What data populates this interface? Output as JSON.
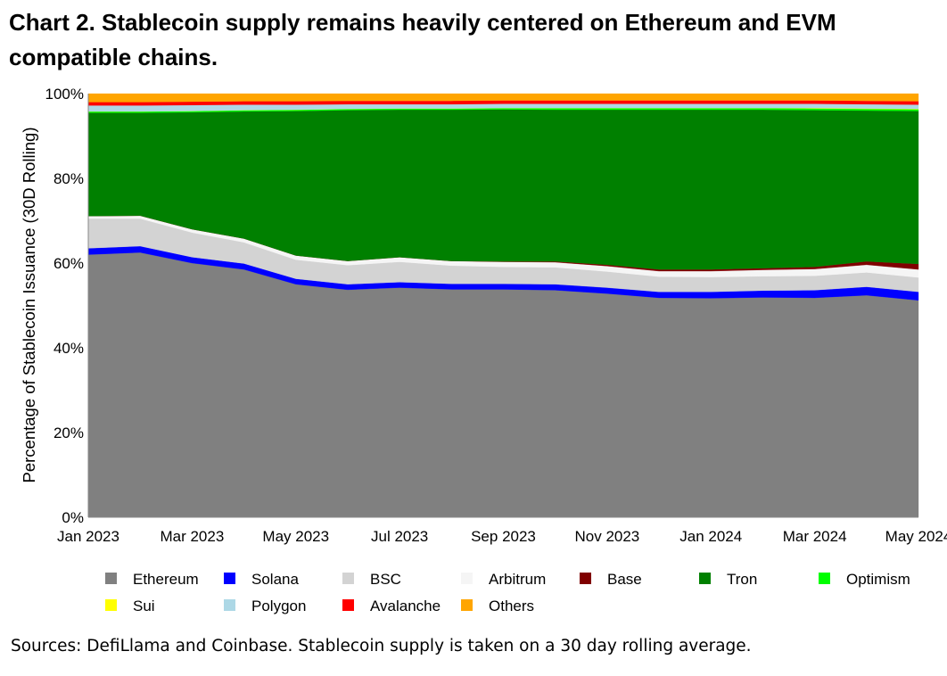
{
  "chart_data": {
    "type": "area",
    "stacked": true,
    "title": "Chart 2. Stablecoin supply remains heavily centered on Ethereum and EVM compatible chains.",
    "ylabel": "Percentage of Stablecoin Issuance (30D Rolling)",
    "xlabel": "",
    "ylim": [
      0,
      100
    ],
    "yticks": [
      "0%",
      "20%",
      "40%",
      "60%",
      "80%",
      "100%"
    ],
    "xticks": [
      "Jan 2023",
      "Mar 2023",
      "May 2023",
      "Jul 2023",
      "Sep 2023",
      "Nov 2023",
      "Jan 2024",
      "Mar 2024",
      "May 2024"
    ],
    "x": [
      "2023-01",
      "2023-02",
      "2023-03",
      "2023-04",
      "2023-05",
      "2023-06",
      "2023-07",
      "2023-08",
      "2023-09",
      "2023-10",
      "2023-11",
      "2023-12",
      "2024-01",
      "2024-02",
      "2024-03",
      "2024-04",
      "2024-05"
    ],
    "grid": false,
    "legend_position": "bottom",
    "series": [
      {
        "name": "Ethereum",
        "color": "#808080",
        "values": [
          62,
          62.5,
          60,
          58.5,
          55,
          53.7,
          54.2,
          53.8,
          53.8,
          53.6,
          52.8,
          51.8,
          51.7,
          51.9,
          51.8,
          52.4,
          51.2
        ]
      },
      {
        "name": "Solana",
        "color": "#0000ff",
        "values": [
          1.5,
          1.5,
          1.4,
          1.4,
          1.3,
          1.3,
          1.3,
          1.3,
          1.3,
          1.4,
          1.4,
          1.4,
          1.5,
          1.6,
          1.8,
          2.0,
          2.0
        ]
      },
      {
        "name": "BSC",
        "color": "#d3d3d3",
        "values": [
          7,
          6.5,
          5.8,
          5,
          4.5,
          4.5,
          4.8,
          4.3,
          4,
          4,
          3.8,
          3.6,
          3.5,
          3.4,
          3.4,
          3.4,
          3.4
        ]
      },
      {
        "name": "Arbitrum",
        "color": "#f5f5f5",
        "values": [
          0.6,
          0.7,
          0.8,
          0.9,
          1.0,
          1.0,
          1.1,
          1.1,
          1.2,
          1.2,
          1.3,
          1.3,
          1.4,
          1.5,
          1.6,
          1.8,
          1.9
        ]
      },
      {
        "name": "Base",
        "color": "#800000",
        "values": [
          0,
          0,
          0,
          0,
          0,
          0,
          0,
          0,
          0.1,
          0.2,
          0.3,
          0.4,
          0.4,
          0.4,
          0.5,
          0.8,
          1.3
        ]
      },
      {
        "name": "Tron",
        "color": "#008000",
        "values": [
          24.4,
          24.3,
          27.6,
          30.0,
          34.1,
          35.6,
          34.8,
          35.7,
          35.9,
          35.8,
          36.6,
          37.7,
          37.7,
          37.4,
          37.0,
          35.6,
          36.1
        ]
      },
      {
        "name": "Optimism",
        "color": "#00ff00",
        "values": [
          0.3,
          0.3,
          0.3,
          0.3,
          0.3,
          0.3,
          0.3,
          0.3,
          0.3,
          0.4,
          0.4,
          0.4,
          0.4,
          0.4,
          0.4,
          0.4,
          0.4
        ]
      },
      {
        "name": "Sui",
        "color": "#ffff00",
        "values": [
          0,
          0,
          0,
          0,
          0,
          0,
          0,
          0,
          0,
          0,
          0,
          0,
          0,
          0,
          0.1,
          0.1,
          0.1
        ]
      },
      {
        "name": "Polygon",
        "color": "#add8e6",
        "values": [
          1.4,
          1.4,
          1.4,
          1.3,
          1.2,
          1.1,
          1.0,
          1.0,
          1.0,
          1.0,
          1.0,
          1.0,
          1.0,
          1.0,
          1.0,
          1.0,
          1.0
        ]
      },
      {
        "name": "Avalanche",
        "color": "#ff0000",
        "values": [
          0.8,
          0.8,
          0.8,
          0.8,
          0.8,
          0.8,
          0.8,
          0.8,
          0.8,
          0.8,
          0.8,
          0.8,
          0.8,
          0.8,
          0.8,
          0.8,
          0.8
        ]
      },
      {
        "name": "Others",
        "color": "#ffa500",
        "values": [
          2.0,
          2.0,
          1.9,
          1.8,
          1.8,
          1.7,
          1.7,
          1.7,
          1.6,
          1.6,
          1.6,
          1.6,
          1.6,
          1.6,
          1.6,
          1.7,
          1.8
        ]
      }
    ]
  },
  "source": "Sources: DefiLlama and Coinbase. Stablecoin supply is taken on a 30 day rolling average."
}
